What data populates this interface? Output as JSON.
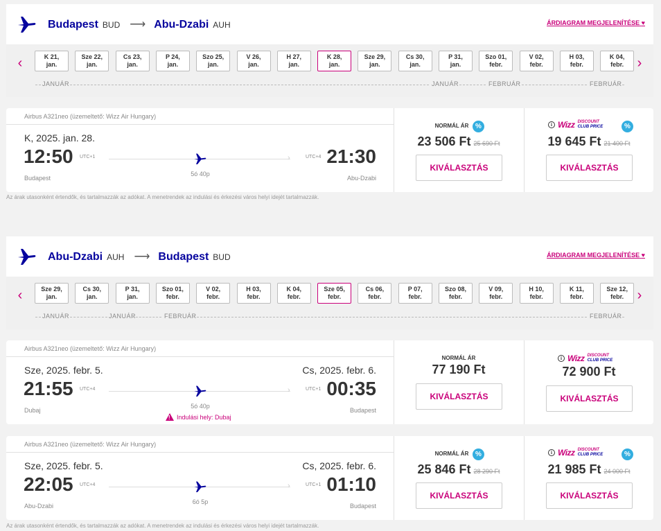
{
  "outbound": {
    "origin": "Budapest",
    "origin_code": "BUD",
    "destination": "Abu-Dzabi",
    "destination_code": "AUH",
    "diagram_link": "ÁRDIAGRAM MEGJELENÍTÉSE",
    "dates": [
      {
        "day": "K 21,",
        "month": "jan."
      },
      {
        "day": "Sze 22,",
        "month": "jan."
      },
      {
        "day": "Cs 23,",
        "month": "jan."
      },
      {
        "day": "P 24,",
        "month": "jan."
      },
      {
        "day": "Szo 25,",
        "month": "jan."
      },
      {
        "day": "V 26,",
        "month": "jan."
      },
      {
        "day": "H 27,",
        "month": "jan."
      },
      {
        "day": "K 28,",
        "month": "jan."
      },
      {
        "day": "Sze 29,",
        "month": "jan."
      },
      {
        "day": "Cs 30,",
        "month": "jan."
      },
      {
        "day": "P 31,",
        "month": "jan."
      },
      {
        "day": "Szo 01,",
        "month": "febr."
      },
      {
        "day": "V 02,",
        "month": "febr."
      },
      {
        "day": "H 03,",
        "month": "febr."
      },
      {
        "day": "K 04,",
        "month": "febr."
      }
    ],
    "selected_index": 7,
    "month_labels": [
      "JANUÁR",
      "JANUÁR",
      "FEBRUÁR",
      "FEBRUÁR"
    ],
    "flights": [
      {
        "aircraft": "Airbus A321neo (üzemeltető: Wizz Air Hungary)",
        "dep_date": "K, 2025. jan. 28.",
        "arr_date": "",
        "dep_time": "12:50",
        "dep_utc": "UTC+1",
        "arr_time": "21:30",
        "arr_utc": "UTC+4",
        "dep_city": "Budapest",
        "arr_city": "Abu-Dzabi",
        "duration": "5ó 40p",
        "warning": "",
        "normal_label": "NORMÁL ÁR",
        "normal_price": "23 506 Ft",
        "normal_old": "25 690 Ft",
        "club_price": "19 645 Ft",
        "club_old": "21 400 Ft",
        "select": "KIVÁLASZTÁS"
      }
    ],
    "note": "Az árak utasonként értendők, és tartalmazzák az adókat. A menetrendek az indulási és érkezési város helyi idejét tartalmazzák."
  },
  "inbound": {
    "origin": "Abu-Dzabi",
    "origin_code": "AUH",
    "destination": "Budapest",
    "destination_code": "BUD",
    "diagram_link": "ÁRDIAGRAM MEGJELENÍTÉSE",
    "dates": [
      {
        "day": "Sze 29,",
        "month": "jan."
      },
      {
        "day": "Cs 30,",
        "month": "jan."
      },
      {
        "day": "P 31,",
        "month": "jan."
      },
      {
        "day": "Szo 01,",
        "month": "febr."
      },
      {
        "day": "V 02,",
        "month": "febr."
      },
      {
        "day": "H 03,",
        "month": "febr."
      },
      {
        "day": "K 04,",
        "month": "febr."
      },
      {
        "day": "Sze 05,",
        "month": "febr."
      },
      {
        "day": "Cs 06,",
        "month": "febr."
      },
      {
        "day": "P 07,",
        "month": "febr."
      },
      {
        "day": "Szo 08,",
        "month": "febr."
      },
      {
        "day": "V 09,",
        "month": "febr."
      },
      {
        "day": "H 10,",
        "month": "febr."
      },
      {
        "day": "K 11,",
        "month": "febr."
      },
      {
        "day": "Sze 12,",
        "month": "febr."
      }
    ],
    "selected_index": 7,
    "month_labels": [
      "JANUÁR",
      "JANUÁR",
      "FEBRUÁR",
      "FEBRUÁR"
    ],
    "flights": [
      {
        "aircraft": "Airbus A321neo (üzemeltető: Wizz Air Hungary)",
        "dep_date": "Sze, 2025. febr. 5.",
        "arr_date": "Cs, 2025. febr. 6.",
        "dep_time": "21:55",
        "dep_utc": "UTC+4",
        "arr_time": "00:35",
        "arr_utc": "UTC+1",
        "dep_city": "Dubaj",
        "arr_city": "Budapest",
        "duration": "5ó 40p",
        "warning": "Indulási hely: Dubaj",
        "normal_label": "NORMÁL ÁR",
        "normal_price": "77 190 Ft",
        "normal_old": "",
        "club_price": "72 900 Ft",
        "club_old": "",
        "select": "KIVÁLASZTÁS"
      },
      {
        "aircraft": "Airbus A321neo (üzemeltető: Wizz Air Hungary)",
        "dep_date": "Sze, 2025. febr. 5.",
        "arr_date": "Cs, 2025. febr. 6.",
        "dep_time": "22:05",
        "dep_utc": "UTC+4",
        "arr_time": "01:10",
        "arr_utc": "UTC+1",
        "dep_city": "Abu-Dzabi",
        "arr_city": "Budapest",
        "duration": "6ó 5p",
        "warning": "",
        "normal_label": "NORMÁL ÁR",
        "normal_price": "25 846 Ft",
        "normal_old": "28 290 Ft",
        "club_price": "21 985 Ft",
        "club_old": "24 000 Ft",
        "select": "KIVÁLASZTÁS"
      }
    ],
    "note": "Az árak utasonként értendők, és tartalmazzák az adókat. A menetrendek az indulási és érkezési város helyi idejét tartalmazzák."
  },
  "club_logo": {
    "wizz": "Wizz",
    "line1": "DISCOUNT",
    "line2": "CLUB",
    "line3": "PRICE"
  },
  "pct_symbol": "%",
  "info_symbol": "i",
  "colors": {
    "brand_blue": "#06049e",
    "brand_pink": "#c9007a",
    "pct_blue": "#33aee0"
  }
}
